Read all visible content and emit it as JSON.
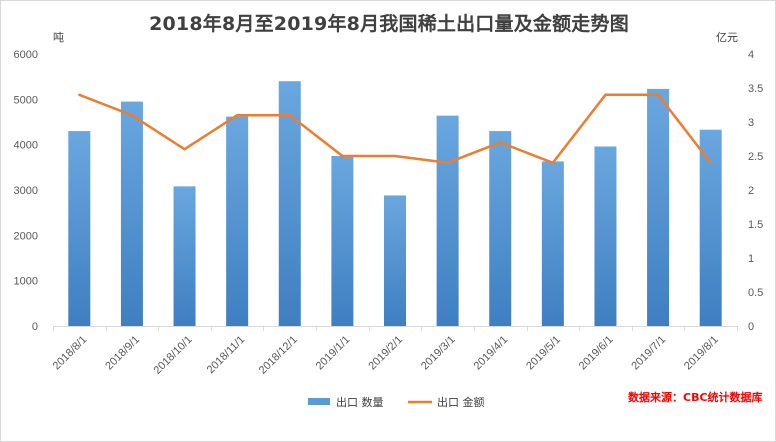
{
  "chart_data": {
    "type": "bar",
    "title": "2018年8月至2019年8月我国稀土出口量及金额走势图",
    "categories": [
      "2018/8/1",
      "2018/9/1",
      "2018/10/1",
      "2018/11/1",
      "2018/12/1",
      "2019/1/1",
      "2019/2/1",
      "2019/3/1",
      "2019/4/1",
      "2019/5/1",
      "2019/6/1",
      "2019/7/1",
      "2019/8/1"
    ],
    "series": [
      {
        "name": "出口 数量",
        "type": "bar",
        "axis": "left",
        "color": "#5b9bd5",
        "values": [
          4300,
          4950,
          3080,
          4620,
          5400,
          3750,
          2880,
          4640,
          4300,
          3630,
          3960,
          5230,
          4330
        ]
      },
      {
        "name": "出口 金额",
        "type": "line",
        "axis": "right",
        "color": "#ed7d31",
        "values": [
          3.4,
          3.1,
          2.6,
          3.1,
          3.1,
          2.5,
          2.5,
          2.4,
          2.7,
          2.4,
          3.4,
          3.4,
          2.4
        ]
      }
    ],
    "ylabel": "吨",
    "y2label": "亿元",
    "ylim": [
      0,
      6000
    ],
    "yticks": [
      "0",
      "1000",
      "2000",
      "3000",
      "4000",
      "5000",
      "6000"
    ],
    "y2lim": [
      0,
      4
    ],
    "y2ticks": [
      "0",
      "0.5",
      "1",
      "1.5",
      "2",
      "2.5",
      "3",
      "3.5",
      "4"
    ],
    "legend_position": "bottom",
    "grid": false,
    "source_note": "数据来源：CBC统计数据库"
  }
}
